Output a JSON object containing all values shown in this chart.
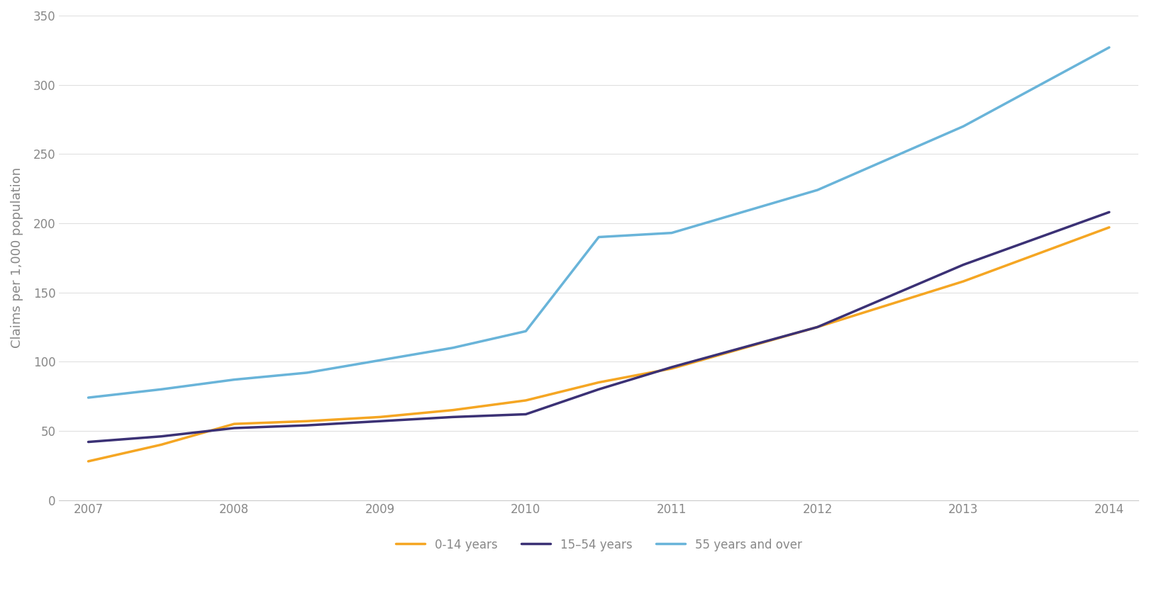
{
  "x_values": [
    0,
    0.5,
    1,
    1.5,
    2,
    2.5,
    3,
    3.5,
    4,
    5,
    6,
    7
  ],
  "series": [
    {
      "label": "0-14 years",
      "color": "#F5A623",
      "values": [
        28,
        40,
        55,
        57,
        60,
        65,
        72,
        85,
        95,
        125,
        158,
        197
      ]
    },
    {
      "label": "15–54 years",
      "color": "#3B3175",
      "values": [
        42,
        46,
        52,
        54,
        57,
        60,
        62,
        80,
        96,
        125,
        170,
        208
      ]
    },
    {
      "label": "55 years and over",
      "color": "#69B4D9",
      "values": [
        74,
        80,
        87,
        92,
        101,
        110,
        122,
        190,
        193,
        224,
        270,
        327
      ]
    }
  ],
  "x_tick_positions": [
    0,
    1,
    2,
    3,
    4,
    5,
    6,
    7
  ],
  "x_tick_labels": [
    "2007",
    "2008",
    "2009",
    "2010",
    "2011",
    "2012",
    "2013",
    "2014"
  ],
  "ylabel": "Claims per 1,000 population",
  "ylim": [
    0,
    350
  ],
  "yticks": [
    0,
    50,
    100,
    150,
    200,
    250,
    300,
    350
  ],
  "background_color": "#ffffff",
  "line_width": 2.5,
  "axis_fontsize": 13,
  "tick_fontsize": 12,
  "legend_fontsize": 12,
  "tick_color": "#888888",
  "spine_color": "#cccccc",
  "grid_color": "#e0e0e0"
}
